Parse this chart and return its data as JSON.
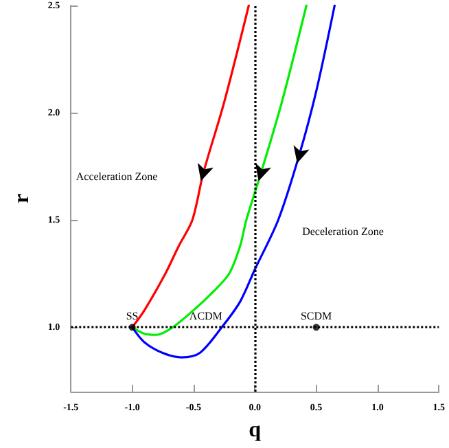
{
  "chart_data": {
    "type": "line",
    "xlabel": "q",
    "ylabel": "r",
    "series": [
      {
        "color": "#ff0000",
        "x": [
          -1,
          -0.9,
          -0.73,
          -0.62,
          -0.51,
          -0.42,
          -0.25,
          -0.05
        ],
        "values": [
          1,
          1.08,
          1.25,
          1.38,
          1.5,
          1.72,
          2.05,
          2.5
        ]
      },
      {
        "color": "#00ee00",
        "x": [
          -1,
          -0.9,
          -0.8,
          -0.67,
          -0.5,
          -0.35,
          -0.21,
          -0.12,
          -0.07,
          0.05,
          0.22,
          0.42
        ],
        "values": [
          1,
          0.97,
          0.965,
          1.0,
          1.08,
          1.16,
          1.25,
          1.38,
          1.5,
          1.72,
          2.05,
          2.5
        ]
      },
      {
        "color": "#0000ff",
        "x": [
          -1,
          -0.9,
          -0.75,
          -0.6,
          -0.45,
          -0.27,
          -0.12,
          0,
          0.19,
          0.36,
          0.5,
          0.65
        ],
        "values": [
          1,
          0.93,
          0.88,
          0.86,
          0.88,
          1.0,
          1.12,
          1.27,
          1.5,
          1.8,
          2.1,
          2.5
        ]
      },
      {
        "type": "scatter",
        "marker": "circle",
        "color": "#000000",
        "x": [
          -1,
          0.5
        ],
        "values": [
          1,
          1
        ]
      }
    ],
    "annotations": [
      {
        "text": "SS",
        "x": -1,
        "y": 1
      },
      {
        "text": "ΛCDM",
        "x": -0.4,
        "y": 1
      },
      {
        "text": "SCDM",
        "x": 0.5,
        "y": 1
      },
      "Acceleration Zone",
      "Deceleration Zone"
    ],
    "ref_lines": [
      {
        "axis": "x",
        "value": 0,
        "color": "#000000",
        "line_style": "dotted"
      },
      {
        "axis": "y",
        "value": 1,
        "color": "#000000",
        "line_style": "dotted"
      }
    ],
    "xlim": [
      -1.5,
      1.5
    ],
    "xticks": [
      {
        "value": -1.5,
        "label": "-1.5"
      },
      {
        "value": -1,
        "label": "-1.0"
      },
      {
        "value": -0.5,
        "label": "-0.5"
      },
      {
        "value": 0,
        "label": "0.0"
      },
      {
        "value": 0.5,
        "label": "0.5"
      },
      {
        "value": 1,
        "label": "1.0"
      },
      {
        "value": 1.5,
        "label": "1.5"
      }
    ],
    "ylim": [
      0.7,
      2.5
    ],
    "yticks": [
      {
        "value": 1,
        "label": "1.0"
      },
      1.5,
      {
        "value": 2,
        "label": "2.0"
      },
      2.5
    ],
    "grid": false,
    "marker": "none",
    "line_style": "solid"
  }
}
